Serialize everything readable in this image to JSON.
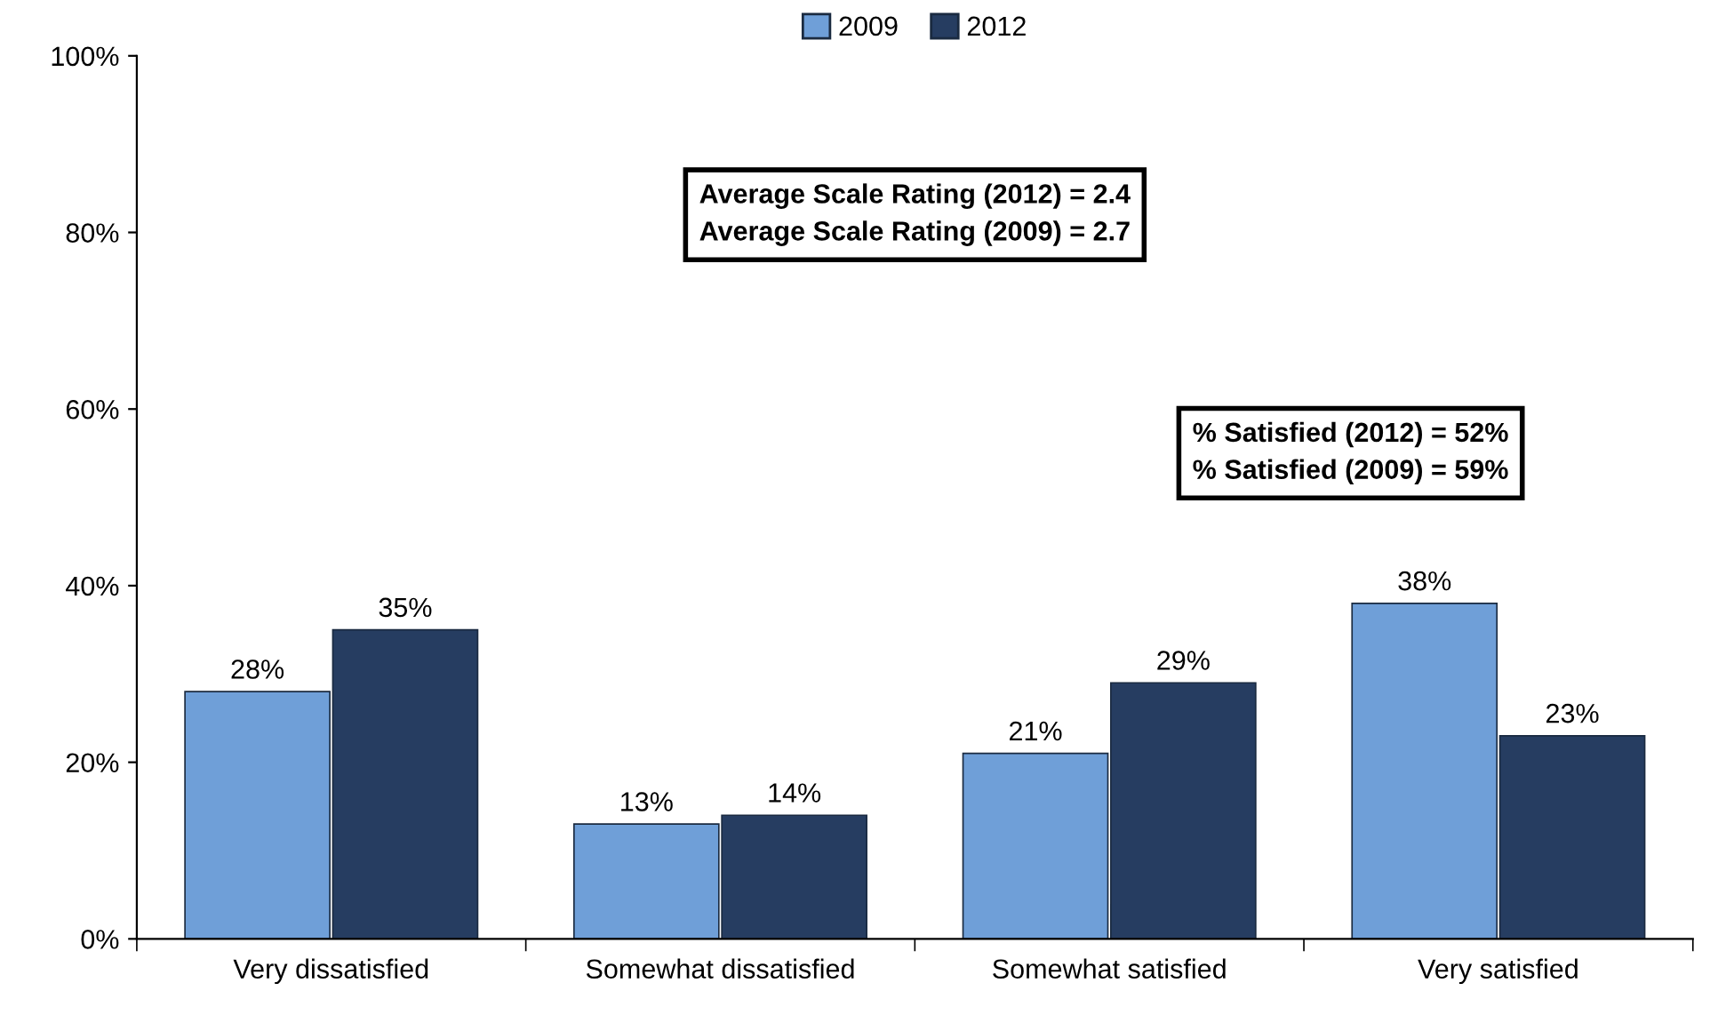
{
  "chart_data": {
    "type": "bar",
    "categories": [
      "Very dissatisfied",
      "Somewhat dissatisfied",
      "Somewhat satisfied",
      "Very satisfied"
    ],
    "series": [
      {
        "name": "2009",
        "color": "#6f9fd8",
        "values": [
          28,
          13,
          21,
          38
        ],
        "value_labels": [
          "28%",
          "13%",
          "21%",
          "38%"
        ]
      },
      {
        "name": "2012",
        "color": "#263d61",
        "values": [
          35,
          14,
          29,
          23
        ],
        "value_labels": [
          "35%",
          "14%",
          "29%",
          "23%"
        ]
      }
    ],
    "ylim": [
      0,
      100
    ],
    "yticks": [
      {
        "value": 0,
        "label": "0%"
      },
      {
        "value": 20,
        "label": "20%"
      },
      {
        "value": 40,
        "label": "40%"
      },
      {
        "value": 60,
        "label": "60%"
      },
      {
        "value": 80,
        "label": "80%"
      },
      {
        "value": 100,
        "label": "100%"
      }
    ],
    "grid": false,
    "legend": "top",
    "annotations": [
      "Average Scale Rating (2012) = 2.4\nAverage Scale Rating (2009) = 2.7",
      "% Satisfied (2012) = 52%\n% Satisfied (2009) = 59%"
    ]
  }
}
